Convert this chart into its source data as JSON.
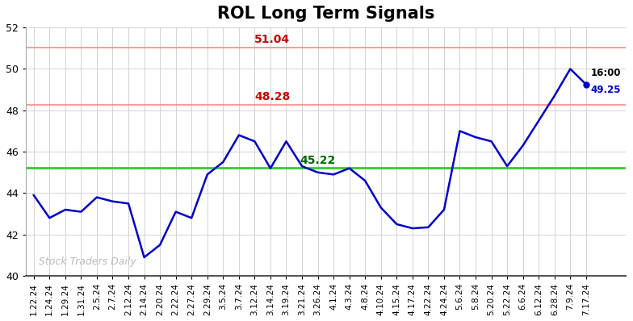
{
  "title": "ROL Long Term Signals",
  "ylim": [
    40,
    52
  ],
  "background_color": "#ffffff",
  "grid_color": "#cccccc",
  "line_color": "#0000cc",
  "line_width": 1.8,
  "hline_green": 45.22,
  "hline_green_color": "#33cc33",
  "hline_red1": 48.28,
  "hline_red2": 51.04,
  "hline_red_color": "#ff8888",
  "annotation_51": "51.04",
  "annotation_48": "48.28",
  "annotation_45": "45.22",
  "annotation_last": "49.25",
  "annotation_time": "16:00",
  "watermark": "Stock Traders Daily",
  "x_labels": [
    "1.22.24",
    "1.24.24",
    "1.29.24",
    "1.31.24",
    "2.5.24",
    "2.7.24",
    "2.12.24",
    "2.14.24",
    "2.20.24",
    "2.22.24",
    "2.27.24",
    "2.29.24",
    "3.5.24",
    "3.7.24",
    "3.12.24",
    "3.14.24",
    "3.19.24",
    "3.21.24",
    "3.26.24",
    "4.1.24",
    "4.3.24",
    "4.8.24",
    "4.10.24",
    "4.15.24",
    "4.17.24",
    "4.22.24",
    "4.24.24",
    "5.6.24",
    "5.8.24",
    "5.20.24",
    "5.22.24",
    "6.6.24",
    "6.12.24",
    "6.28.24",
    "7.9.24",
    "7.17.24"
  ],
  "y_values": [
    43.9,
    42.8,
    43.2,
    43.1,
    43.8,
    43.6,
    43.5,
    40.9,
    41.5,
    43.1,
    42.8,
    44.9,
    45.5,
    46.8,
    46.5,
    45.2,
    46.5,
    45.3,
    45.0,
    44.9,
    45.2,
    44.6,
    43.3,
    42.5,
    42.3,
    42.35,
    43.2,
    47.0,
    46.7,
    46.5,
    45.3,
    46.3,
    47.5,
    48.7,
    50.0,
    49.25
  ]
}
